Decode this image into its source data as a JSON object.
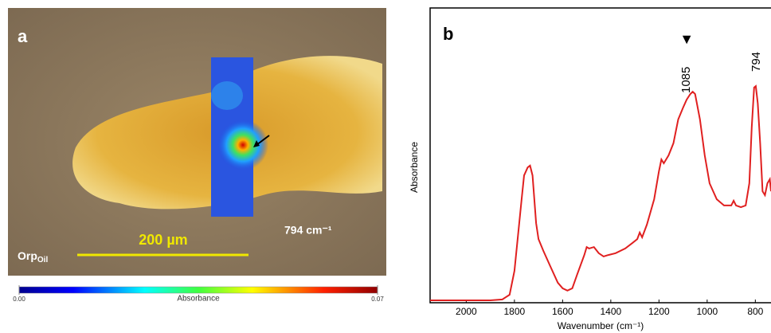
{
  "panel_a": {
    "label": "a",
    "scale_bar": "200 µm",
    "band": "794 cm⁻¹",
    "sample": "Orp",
    "sample_subscript": "Oil",
    "colorbar": {
      "label": "Absorbance",
      "ticks": [
        {
          "value": 0,
          "label": "0.00"
        },
        {
          "value": 0.07,
          "label": "0.07"
        }
      ]
    }
  },
  "chart_data": {
    "type": "line",
    "panel_label": "b",
    "x_label": "Wavenumber (cm⁻¹)",
    "y_label": "Absorbance",
    "xlim": [
      2150,
      735
    ],
    "xticks": [
      2000,
      1800,
      1600,
      1400,
      1200,
      1000,
      800
    ],
    "ylim": [
      0,
      1
    ],
    "grid": false,
    "annotations": [
      {
        "text": "1085",
        "x": 1085,
        "marker": "▼"
      },
      {
        "text": "794",
        "x": 794
      }
    ],
    "series": [
      {
        "color": "#e02020",
        "x": [
          2150,
          1900,
          1850,
          1820,
          1800,
          1780,
          1770,
          1760,
          1745,
          1735,
          1725,
          1710,
          1700,
          1680,
          1650,
          1620,
          1600,
          1580,
          1560,
          1540,
          1510,
          1500,
          1490,
          1470,
          1450,
          1430,
          1410,
          1380,
          1340,
          1310,
          1290,
          1280,
          1270,
          1250,
          1220,
          1200,
          1190,
          1180,
          1160,
          1140,
          1120,
          1100,
          1085,
          1070,
          1060,
          1050,
          1030,
          1010,
          990,
          960,
          930,
          900,
          890,
          880,
          860,
          840,
          825,
          815,
          805,
          798,
          790,
          780,
          770,
          760,
          750,
          740,
          735
        ],
        "values": [
          0.008,
          0.008,
          0.011,
          0.027,
          0.108,
          0.27,
          0.351,
          0.432,
          0.459,
          0.465,
          0.432,
          0.27,
          0.216,
          0.176,
          0.122,
          0.068,
          0.049,
          0.041,
          0.049,
          0.095,
          0.162,
          0.189,
          0.184,
          0.189,
          0.168,
          0.157,
          0.162,
          0.168,
          0.184,
          0.203,
          0.216,
          0.238,
          0.222,
          0.265,
          0.351,
          0.446,
          0.486,
          0.473,
          0.5,
          0.541,
          0.622,
          0.662,
          0.689,
          0.708,
          0.716,
          0.708,
          0.622,
          0.5,
          0.405,
          0.351,
          0.33,
          0.33,
          0.346,
          0.33,
          0.324,
          0.33,
          0.405,
          0.595,
          0.73,
          0.735,
          0.676,
          0.541,
          0.378,
          0.365,
          0.405,
          0.419,
          0.378
        ]
      }
    ]
  }
}
